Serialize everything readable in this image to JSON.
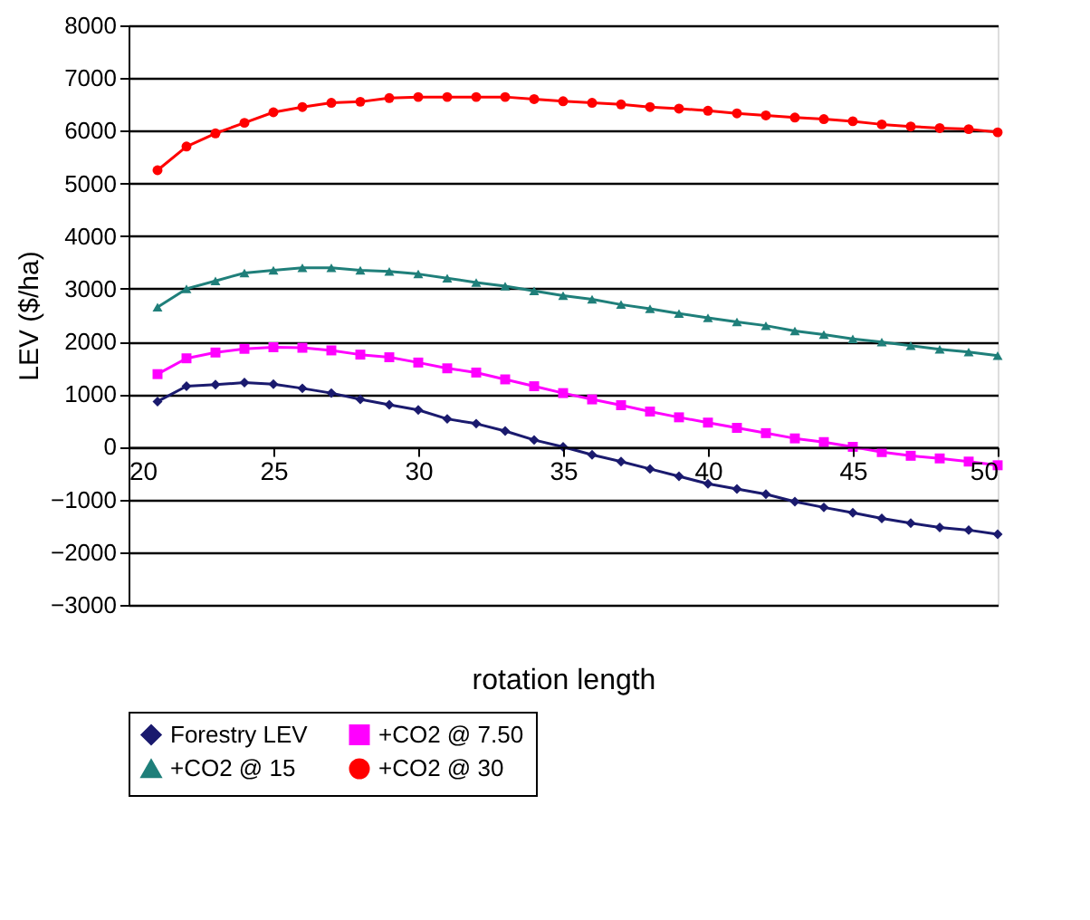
{
  "chart_data": {
    "type": "line",
    "xlabel": "rotation length",
    "ylabel": "LEV ($/ha)",
    "x": [
      21,
      22,
      23,
      24,
      25,
      26,
      27,
      28,
      29,
      30,
      31,
      32,
      33,
      34,
      35,
      36,
      37,
      38,
      39,
      40,
      41,
      42,
      43,
      44,
      45,
      46,
      47,
      48,
      49,
      50
    ],
    "series": [
      {
        "name": "Forestry LEV",
        "color": "#1a1a6e",
        "marker": "diamond",
        "values": [
          860,
          1150,
          1180,
          1220,
          1190,
          1110,
          1020,
          900,
          800,
          700,
          530,
          440,
          300,
          130,
          0,
          -150,
          -280,
          -420,
          -560,
          -700,
          -800,
          -900,
          -1040,
          -1150,
          -1250,
          -1360,
          -1450,
          -1530,
          -1580,
          -1660
        ]
      },
      {
        "name": "+CO2 @ 7.50",
        "color": "#ff00ff",
        "marker": "square",
        "values": [
          1380,
          1680,
          1790,
          1860,
          1890,
          1880,
          1830,
          1750,
          1700,
          1600,
          1490,
          1410,
          1280,
          1150,
          1020,
          900,
          790,
          670,
          560,
          460,
          360,
          260,
          160,
          90,
          0,
          -100,
          -170,
          -220,
          -280,
          -350
        ]
      },
      {
        "name": "+CO2 @ 15",
        "color": "#1f7f7a",
        "marker": "triangle",
        "values": [
          2650,
          3000,
          3150,
          3300,
          3350,
          3400,
          3400,
          3350,
          3330,
          3280,
          3200,
          3120,
          3050,
          2960,
          2870,
          2800,
          2700,
          2620,
          2530,
          2450,
          2370,
          2300,
          2200,
          2130,
          2050,
          1990,
          1920,
          1850,
          1800,
          1730
        ]
      },
      {
        "name": "+CO2 @ 30",
        "color": "#ff0000",
        "marker": "circle",
        "values": [
          5250,
          5700,
          5950,
          6150,
          6350,
          6450,
          6530,
          6550,
          6620,
          6640,
          6640,
          6640,
          6640,
          6600,
          6560,
          6530,
          6500,
          6450,
          6420,
          6380,
          6330,
          6290,
          6250,
          6220,
          6180,
          6120,
          6080,
          6050,
          6030,
          5970
        ]
      }
    ],
    "xlim": [
      20,
      50
    ],
    "ylim": [
      -3000,
      8000
    ],
    "xticks": [
      20,
      25,
      30,
      35,
      40,
      45,
      50
    ],
    "yticks": [
      -3000,
      -2000,
      -1000,
      0,
      1000,
      2000,
      3000,
      4000,
      5000,
      6000,
      7000,
      8000
    ],
    "grid": "y",
    "legend": "bottom",
    "line_style": "solid"
  }
}
